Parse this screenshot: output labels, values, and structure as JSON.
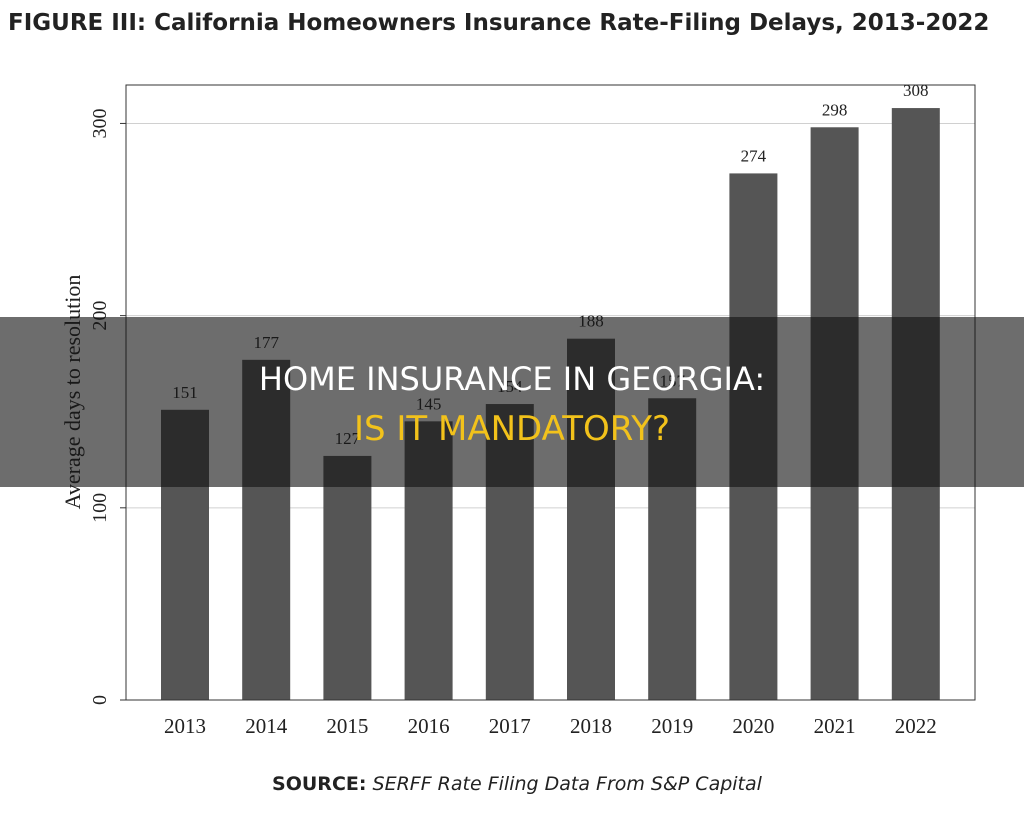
{
  "chart_data": {
    "type": "bar",
    "title": "FIGURE III: California Homeowners Insurance Rate-Filing Delays, 2013-2022",
    "ylabel": "Average days to resolution",
    "categories": [
      "2013",
      "2014",
      "2015",
      "2016",
      "2017",
      "2018",
      "2019",
      "2020",
      "2021",
      "2022"
    ],
    "values": [
      151,
      177,
      127,
      145,
      154,
      188,
      157,
      274,
      298,
      308
    ],
    "color": "#555555",
    "ylim": [
      0,
      320
    ],
    "yticks": [
      0,
      100,
      200,
      300
    ],
    "grid": true,
    "source_label": "SOURCE:",
    "source_text": "SERFF Rate Filing Data From S&P Capital"
  },
  "banner": {
    "line1": "HOME INSURANCE IN GEORGIA:",
    "line2": "IS IT MANDATORY?"
  }
}
